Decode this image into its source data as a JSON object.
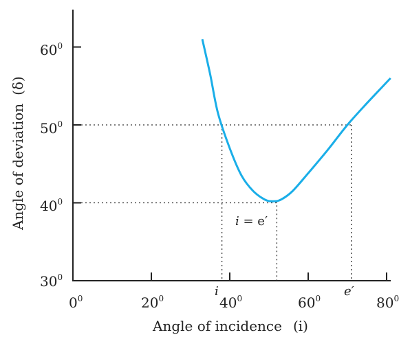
{
  "chart_data": {
    "type": "line",
    "title": "",
    "xlabel": "Angle of incidence",
    "xlabel_symbol": "(i)",
    "ylabel": "Angle of deviation",
    "ylabel_symbol": "(δ)",
    "xlim": [
      0,
      80
    ],
    "ylim": [
      30,
      65
    ],
    "x_ticks": [
      0,
      20,
      40,
      60,
      80
    ],
    "x_tick_labels": [
      "0",
      "20",
      "40",
      "60",
      "80"
    ],
    "y_ticks": [
      30,
      40,
      50,
      60
    ],
    "y_tick_labels": [
      "30",
      "40",
      "50",
      "60"
    ],
    "degree_mark": "0",
    "grid": false,
    "series": [
      {
        "x": [
          33,
          35,
          37,
          40,
          43,
          46,
          49,
          51,
          53,
          56,
          60,
          65,
          70,
          75,
          81
        ],
        "y": [
          61,
          56.5,
          51.5,
          47,
          43.5,
          41.5,
          40.4,
          40.2,
          40.4,
          41.5,
          43.8,
          46.8,
          50,
          52.8,
          56
        ]
      }
    ],
    "color": "#1aaee8",
    "reference_lines": {
      "horizontal": [
        50,
        40
      ],
      "vertical": [
        38,
        52,
        71
      ]
    },
    "annotations": {
      "i_tick": "i",
      "e_tick": "e′",
      "min_label_i": "i",
      "min_label_rest": " = e′"
    }
  }
}
